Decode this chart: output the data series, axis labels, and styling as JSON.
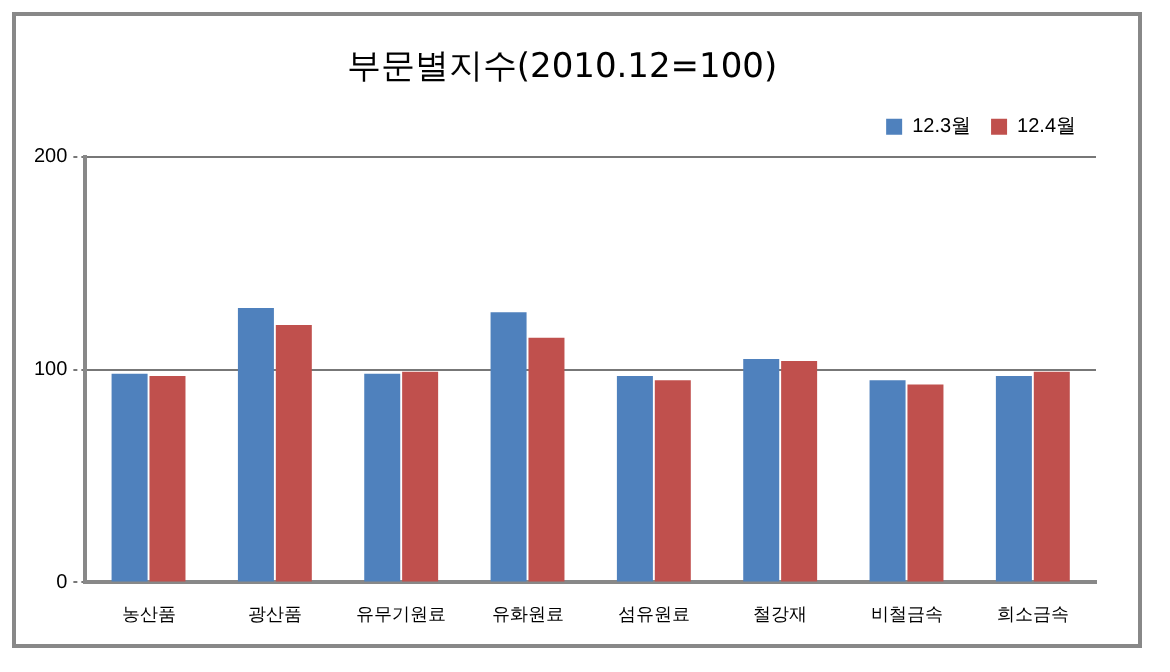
{
  "chart_data": {
    "type": "bar",
    "title": "부문별지수(2010.12=100)",
    "categories": [
      "농산품",
      "광산품",
      "유무기원료",
      "유화원료",
      "섬유원료",
      "철강재",
      "비철금속",
      "희소금속"
    ],
    "series": [
      {
        "name": "12.3월",
        "color": "#4f81bd",
        "values": [
          98,
          129,
          98,
          127,
          97,
          105,
          95,
          97
        ]
      },
      {
        "name": "12.4월",
        "color": "#c0504d",
        "values": [
          97,
          121,
          99,
          115,
          95,
          104,
          93,
          99
        ]
      }
    ],
    "ylim": [
      0,
      200
    ],
    "yticks": [
      0,
      100,
      200
    ],
    "grid": "y",
    "legend": "top right"
  }
}
